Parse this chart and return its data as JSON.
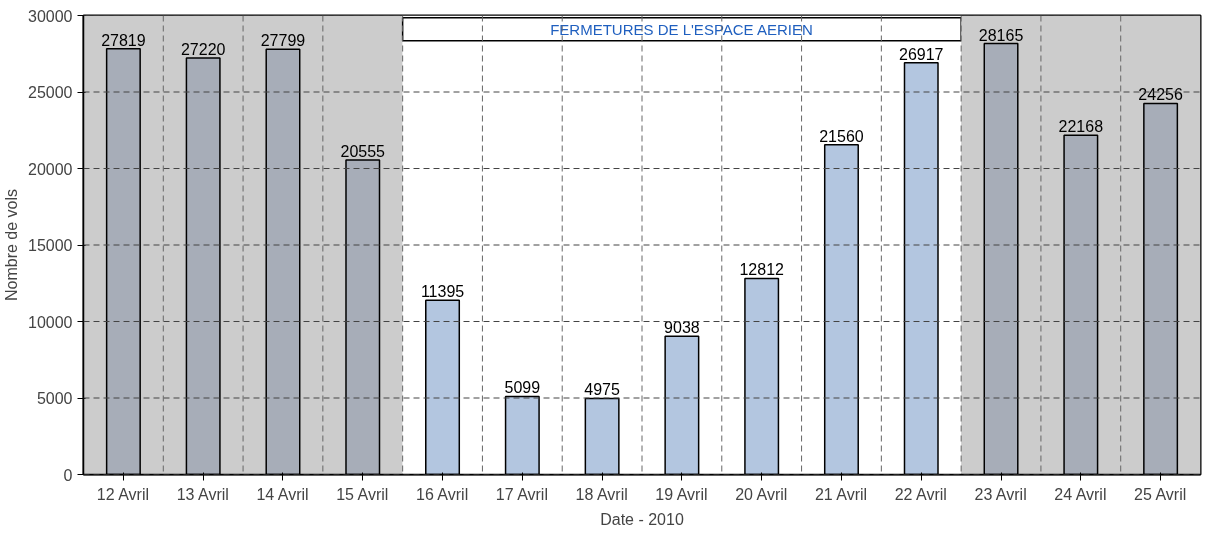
{
  "chart_data": {
    "type": "bar",
    "xlabel": "Date - 2010",
    "ylabel": "Nombre de vols",
    "categories": [
      "12 Avril",
      "13 Avril",
      "14 Avril",
      "15 Avril",
      "16 Avril",
      "17 Avril",
      "18 Avril",
      "19 Avril",
      "20 Avril",
      "21 Avril",
      "22 Avril",
      "23 Avril",
      "24 Avril",
      "25 Avril"
    ],
    "values": [
      27819,
      27220,
      27799,
      20555,
      11395,
      5099,
      4975,
      9038,
      12812,
      21560,
      26917,
      28165,
      22168,
      24256
    ],
    "colors": [
      "#a7adb8",
      "#a7adb8",
      "#a7adb8",
      "#a7adb8",
      "#b3c6e0",
      "#b3c6e0",
      "#b3c6e0",
      "#b3c6e0",
      "#b3c6e0",
      "#b3c6e0",
      "#b3c6e0",
      "#a7adb8",
      "#a7adb8",
      "#a7adb8"
    ],
    "ylim": [
      0,
      30000
    ],
    "yticks": [
      0,
      5000,
      10000,
      15000,
      20000,
      25000,
      30000
    ],
    "bands": [
      {
        "axis": "x",
        "from": "12 Avril",
        "to": "15 Avril",
        "color": "#cccccc"
      },
      {
        "axis": "x",
        "from": "16 Avril",
        "to": "22 Avril",
        "color": "#ffffff",
        "label": "FERMETURES DE L'ESPACE AERIEN"
      },
      {
        "axis": "x",
        "from": "23 Avril",
        "to": "25 Avril",
        "color": "#cccccc"
      }
    ],
    "grid": true,
    "data_labels": true
  }
}
